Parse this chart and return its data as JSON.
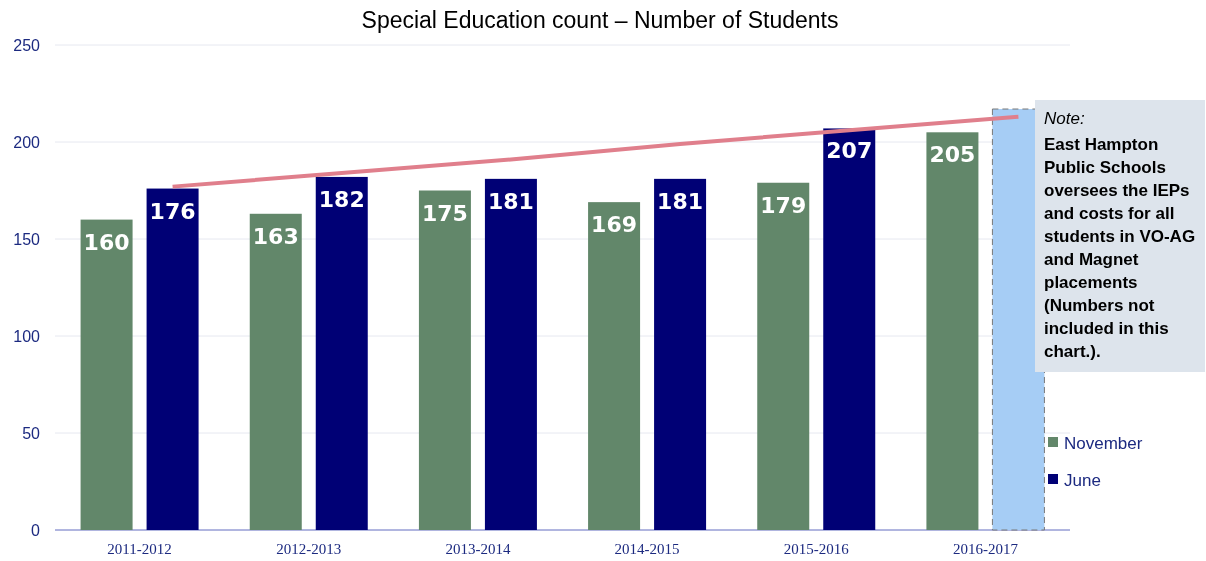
{
  "chart_data": {
    "type": "bar",
    "title": "Special Education count – Number of Students",
    "categories": [
      "2011-2012",
      "2012-2013",
      "2013-2014",
      "2014-2015",
      "2015-2016",
      "2016-2017"
    ],
    "series": [
      {
        "name": "November",
        "color": "#62876a",
        "values": [
          160,
          163,
          175,
          169,
          179,
          205
        ],
        "value_labels": [
          "160",
          "163",
          "175",
          "169",
          "179",
          "205"
        ]
      },
      {
        "name": "June",
        "color": "#000075",
        "colors": [
          "#000075",
          "#000075",
          "#000075",
          "#000075",
          "#000075",
          "#a6cdf5"
        ],
        "values": [
          176,
          182,
          181,
          181,
          207,
          217
        ],
        "value_labels": [
          "176",
          "182",
          "181",
          "181",
          "207",
          null
        ]
      },
      {
        "type": "line",
        "color": "#e07f8c",
        "values": [
          177,
          184,
          191,
          199,
          206,
          213
        ]
      }
    ],
    "ylim": [
      0,
      250
    ],
    "yticks": [
      0,
      50,
      100,
      150,
      200,
      250
    ],
    "grid": "y",
    "legend": "right",
    "annotations": [
      "Note:",
      "East Hampton Public Schools oversees the IEPs and costs for all students in VO-AG and Magnet placements (Numbers not included in this chart.)."
    ]
  }
}
